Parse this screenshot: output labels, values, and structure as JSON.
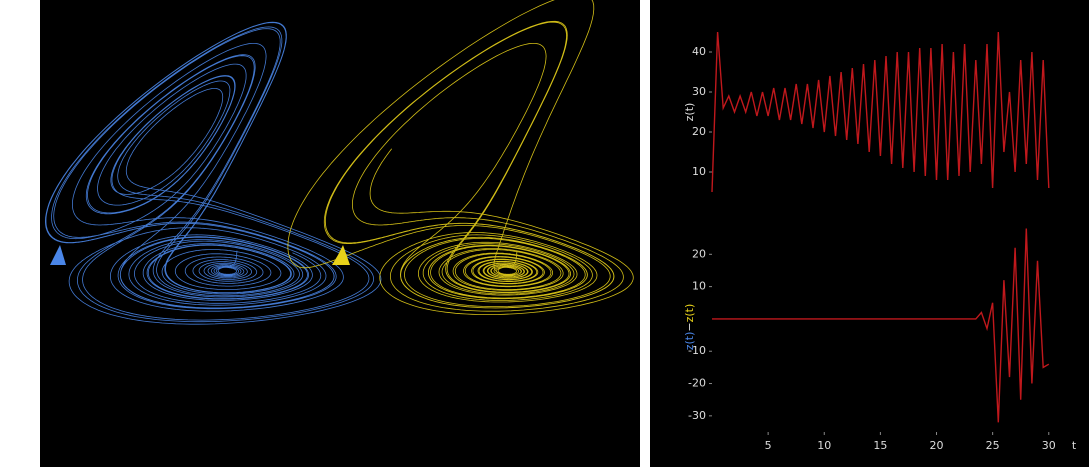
{
  "chart_data": [
    {
      "type": "line",
      "ylabel": "z(t)",
      "x": [
        0,
        0.5,
        1,
        1.5,
        2,
        2.5,
        3,
        3.5,
        4,
        4.5,
        5,
        5.5,
        6,
        6.5,
        7,
        7.5,
        8,
        8.5,
        9,
        9.5,
        10,
        10.5,
        11,
        11.5,
        12,
        12.5,
        13,
        13.5,
        14,
        14.5,
        15,
        15.5,
        16,
        16.5,
        17,
        17.5,
        18,
        18.5,
        19,
        19.5,
        20,
        20.5,
        21,
        21.5,
        22,
        22.5,
        23,
        23.5,
        24,
        24.5,
        25,
        25.5,
        26,
        26.5,
        27,
        27.5,
        28,
        28.5,
        29,
        29.5,
        30
      ],
      "series": [
        {
          "color": "#c0181c",
          "values": [
            5,
            45,
            26,
            29,
            25,
            29,
            25,
            30,
            24,
            30,
            24,
            31,
            23,
            31,
            23,
            32,
            22,
            32,
            21,
            33,
            20,
            34,
            19,
            35,
            18,
            36,
            17,
            37,
            15,
            38,
            14,
            39,
            12,
            40,
            11,
            40,
            10,
            41,
            9,
            41,
            8,
            42,
            8,
            40,
            9,
            42,
            10,
            38,
            12,
            42,
            6,
            45,
            15,
            30,
            10,
            38,
            12,
            40,
            8,
            38,
            6
          ]
        }
      ],
      "xlim": [
        0,
        31
      ],
      "ylim": [
        0,
        50
      ],
      "yticks": [
        10,
        20,
        30,
        40
      ]
    },
    {
      "type": "line",
      "ylabel": [
        "z(t)",
        "−",
        "z(t)"
      ],
      "xlabel": "t",
      "x": [
        0,
        0.5,
        1,
        1.5,
        2,
        2.5,
        3,
        3.5,
        4,
        4.5,
        5,
        5.5,
        6,
        6.5,
        7,
        7.5,
        8,
        8.5,
        9,
        9.5,
        10,
        10.5,
        11,
        11.5,
        12,
        12.5,
        13,
        13.5,
        14,
        14.5,
        15,
        15.5,
        16,
        16.5,
        17,
        17.5,
        18,
        18.5,
        19,
        19.5,
        20,
        20.5,
        21,
        21.5,
        22,
        22.5,
        23,
        23.5,
        24,
        24.5,
        25,
        25.5,
        26,
        26.5,
        27,
        27.5,
        28,
        28.5,
        29,
        29.5,
        30
      ],
      "series": [
        {
          "color": "#c0181c",
          "values": [
            0,
            0,
            0,
            0,
            0,
            0,
            0,
            0,
            0,
            0,
            0,
            0,
            0,
            0,
            0,
            0,
            0,
            0,
            0,
            0,
            0,
            0,
            0,
            0,
            0,
            0,
            0,
            0,
            0,
            0,
            0,
            0,
            0,
            0,
            0,
            0,
            0,
            0,
            0,
            0,
            0,
            0,
            0,
            0,
            0,
            0,
            0,
            0,
            2,
            -3,
            5,
            -32,
            12,
            -18,
            22,
            -25,
            28,
            -20,
            18,
            -15,
            -14
          ]
        }
      ],
      "xlim": [
        0,
        31
      ],
      "ylim": [
        -35,
        30
      ],
      "yticks": [
        -30,
        -20,
        -10,
        10,
        20
      ],
      "xticks": [
        5,
        10,
        15,
        20,
        25,
        30
      ]
    }
  ]
}
